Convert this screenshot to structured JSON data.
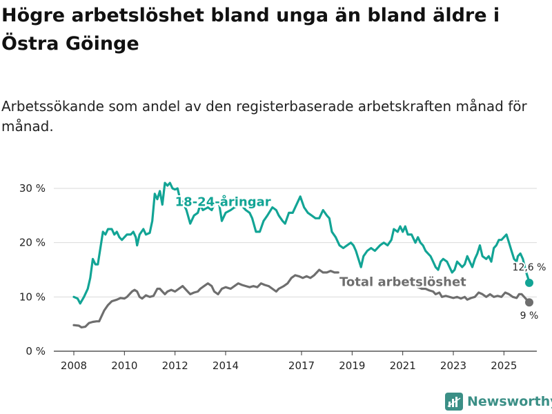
{
  "title": "Högre arbetslöshet bland unga än bland äldre i Östra Göinge",
  "subtitle": "Arbetssökande som andel av den registerbaserade arbetskraften månad för månad.",
  "brand": {
    "name": "Newsworthy",
    "icon": "newsworthy-logo-icon",
    "color": "#3b8f86"
  },
  "chart_data": {
    "type": "line",
    "xlim": [
      2008,
      2026.3
    ],
    "ylim": [
      0,
      30
    ],
    "yticks": [
      {
        "value": 0,
        "label": "0 %"
      },
      {
        "value": 10,
        "label": "10 %"
      },
      {
        "value": 20,
        "label": "20 %"
      },
      {
        "value": 30,
        "label": "30 %"
      }
    ],
    "xticks": [
      {
        "value": 2008,
        "label": "2008"
      },
      {
        "value": 2010,
        "label": "2010"
      },
      {
        "value": 2012,
        "label": "2012"
      },
      {
        "value": 2014,
        "label": "2014"
      },
      {
        "value": 2017,
        "label": "2017"
      },
      {
        "value": 2019,
        "label": "2019"
      },
      {
        "value": 2021,
        "label": "2021"
      },
      {
        "value": 2023,
        "label": "2023"
      },
      {
        "value": 2025,
        "label": "2025"
      }
    ],
    "grid": true,
    "series": [
      {
        "name": "18-24-åringar",
        "color": "#12a495",
        "label_anchor": {
          "x": 2012.0,
          "y": 27.5
        },
        "end_label": "12,6 %",
        "end_point": {
          "x": 2026.0,
          "y": 12.6
        },
        "points": [
          [
            2008.0,
            10.0
          ],
          [
            2008.15,
            9.7
          ],
          [
            2008.25,
            8.8
          ],
          [
            2008.4,
            10.0
          ],
          [
            2008.55,
            11.5
          ],
          [
            2008.65,
            13.5
          ],
          [
            2008.75,
            17.0
          ],
          [
            2008.85,
            16.0
          ],
          [
            2008.95,
            16.0
          ],
          [
            2009.05,
            19.0
          ],
          [
            2009.15,
            22.0
          ],
          [
            2009.25,
            21.5
          ],
          [
            2009.35,
            22.5
          ],
          [
            2009.5,
            22.5
          ],
          [
            2009.6,
            21.5
          ],
          [
            2009.7,
            22.0
          ],
          [
            2009.8,
            21.0
          ],
          [
            2009.9,
            20.5
          ],
          [
            2010.0,
            21.0
          ],
          [
            2010.1,
            21.5
          ],
          [
            2010.25,
            21.5
          ],
          [
            2010.35,
            22.0
          ],
          [
            2010.45,
            21.0
          ],
          [
            2010.5,
            19.5
          ],
          [
            2010.6,
            21.5
          ],
          [
            2010.75,
            22.5
          ],
          [
            2010.85,
            21.5
          ],
          [
            2011.0,
            21.8
          ],
          [
            2011.1,
            24.0
          ],
          [
            2011.2,
            29.0
          ],
          [
            2011.3,
            28.0
          ],
          [
            2011.4,
            29.5
          ],
          [
            2011.5,
            27.0
          ],
          [
            2011.6,
            31.0
          ],
          [
            2011.7,
            30.5
          ],
          [
            2011.8,
            31.0
          ],
          [
            2011.9,
            30.0
          ],
          [
            2012.0,
            29.8
          ],
          [
            2012.1,
            30.0
          ],
          [
            2012.2,
            28.0
          ],
          [
            2012.3,
            27.5
          ],
          [
            2012.35,
            27.0
          ],
          [
            2012.45,
            26.0
          ],
          [
            2012.6,
            23.5
          ],
          [
            2012.75,
            25.0
          ],
          [
            2012.9,
            25.5
          ],
          [
            2013.0,
            27.0
          ],
          [
            2013.1,
            26.0
          ],
          [
            2013.3,
            26.5
          ],
          [
            2013.45,
            26.0
          ],
          [
            2013.6,
            27.5
          ],
          [
            2013.75,
            27.0
          ],
          [
            2013.85,
            24.0
          ],
          [
            2014.0,
            25.5
          ],
          [
            2014.2,
            26.0
          ],
          [
            2014.35,
            26.5
          ],
          [
            2014.6,
            27.0
          ],
          [
            2014.8,
            26.0
          ],
          [
            2014.95,
            25.5
          ],
          [
            2015.05,
            24.5
          ],
          [
            2015.2,
            22.0
          ],
          [
            2015.35,
            22.0
          ],
          [
            2015.5,
            24.0
          ],
          [
            2015.65,
            25.0
          ],
          [
            2015.85,
            26.5
          ],
          [
            2016.0,
            26.0
          ],
          [
            2016.1,
            25.0
          ],
          [
            2016.25,
            24.0
          ],
          [
            2016.35,
            23.5
          ],
          [
            2016.5,
            25.5
          ],
          [
            2016.65,
            25.5
          ],
          [
            2016.8,
            27.0
          ],
          [
            2016.95,
            28.5
          ],
          [
            2017.1,
            26.5
          ],
          [
            2017.25,
            25.5
          ],
          [
            2017.4,
            25.0
          ],
          [
            2017.55,
            24.5
          ],
          [
            2017.7,
            24.5
          ],
          [
            2017.85,
            26.0
          ],
          [
            2018.0,
            25.0
          ],
          [
            2018.1,
            24.5
          ],
          [
            2018.2,
            22.0
          ],
          [
            2018.35,
            21.0
          ],
          [
            2018.5,
            19.5
          ],
          [
            2018.65,
            19.0
          ],
          [
            2018.8,
            19.5
          ],
          [
            2018.95,
            20.0
          ],
          [
            2019.05,
            19.5
          ],
          [
            2019.15,
            18.5
          ],
          [
            2019.25,
            17.0
          ],
          [
            2019.35,
            15.5
          ],
          [
            2019.45,
            17.5
          ],
          [
            2019.6,
            18.5
          ],
          [
            2019.75,
            19.0
          ],
          [
            2019.9,
            18.5
          ],
          [
            2020.1,
            19.5
          ],
          [
            2020.25,
            20.0
          ],
          [
            2020.4,
            19.5
          ],
          [
            2020.55,
            20.5
          ],
          [
            2020.65,
            22.5
          ],
          [
            2020.8,
            22.0
          ],
          [
            2020.9,
            23.0
          ],
          [
            2021.0,
            22.0
          ],
          [
            2021.1,
            23.0
          ],
          [
            2021.2,
            21.5
          ],
          [
            2021.35,
            21.5
          ],
          [
            2021.5,
            20.0
          ],
          [
            2021.6,
            21.0
          ],
          [
            2021.7,
            20.0
          ],
          [
            2021.8,
            19.5
          ],
          [
            2021.9,
            18.5
          ],
          [
            2022.0,
            18.0
          ],
          [
            2022.1,
            17.5
          ],
          [
            2022.2,
            16.5
          ],
          [
            2022.3,
            15.5
          ],
          [
            2022.4,
            15.0
          ],
          [
            2022.5,
            16.5
          ],
          [
            2022.6,
            17.0
          ],
          [
            2022.75,
            16.5
          ],
          [
            2022.85,
            15.5
          ],
          [
            2022.95,
            14.5
          ],
          [
            2023.05,
            15.0
          ],
          [
            2023.15,
            16.5
          ],
          [
            2023.25,
            16.0
          ],
          [
            2023.35,
            15.5
          ],
          [
            2023.45,
            16.0
          ],
          [
            2023.55,
            17.5
          ],
          [
            2023.65,
            16.5
          ],
          [
            2023.75,
            15.5
          ],
          [
            2023.85,
            17.0
          ],
          [
            2023.95,
            18.0
          ],
          [
            2024.05,
            19.5
          ],
          [
            2024.15,
            17.5
          ],
          [
            2024.3,
            17.0
          ],
          [
            2024.4,
            17.5
          ],
          [
            2024.5,
            16.5
          ],
          [
            2024.6,
            19.0
          ],
          [
            2024.7,
            19.5
          ],
          [
            2024.8,
            20.5
          ],
          [
            2024.9,
            20.5
          ],
          [
            2025.0,
            21.0
          ],
          [
            2025.1,
            21.5
          ],
          [
            2025.2,
            20.0
          ],
          [
            2025.3,
            18.5
          ],
          [
            2025.4,
            17.0
          ],
          [
            2025.5,
            16.5
          ],
          [
            2025.55,
            17.5
          ],
          [
            2025.65,
            18.0
          ],
          [
            2025.75,
            17.0
          ],
          [
            2025.85,
            15.0
          ],
          [
            2025.95,
            13.5
          ],
          [
            2026.0,
            12.6
          ]
        ]
      },
      {
        "name": "Total arbetslöshet",
        "color": "#6e6e6e",
        "label_anchor": {
          "x": 2018.5,
          "y": 12.8
        },
        "end_label": "9 %",
        "end_point": {
          "x": 2026.0,
          "y": 9.0
        },
        "points": [
          [
            2008.0,
            4.8
          ],
          [
            2008.2,
            4.7
          ],
          [
            2008.3,
            4.4
          ],
          [
            2008.45,
            4.5
          ],
          [
            2008.6,
            5.2
          ],
          [
            2008.75,
            5.4
          ],
          [
            2008.9,
            5.5
          ],
          [
            2009.0,
            5.5
          ],
          [
            2009.1,
            6.5
          ],
          [
            2009.2,
            7.5
          ],
          [
            2009.35,
            8.5
          ],
          [
            2009.5,
            9.2
          ],
          [
            2009.7,
            9.5
          ],
          [
            2009.85,
            9.8
          ],
          [
            2010.0,
            9.7
          ],
          [
            2010.1,
            10.0
          ],
          [
            2010.2,
            10.5
          ],
          [
            2010.3,
            11.0
          ],
          [
            2010.4,
            11.3
          ],
          [
            2010.5,
            11.0
          ],
          [
            2010.6,
            10.0
          ],
          [
            2010.7,
            9.7
          ],
          [
            2010.85,
            10.3
          ],
          [
            2011.0,
            10.0
          ],
          [
            2011.15,
            10.2
          ],
          [
            2011.3,
            11.5
          ],
          [
            2011.4,
            11.5
          ],
          [
            2011.5,
            11.0
          ],
          [
            2011.6,
            10.5
          ],
          [
            2011.7,
            11.0
          ],
          [
            2011.85,
            11.3
          ],
          [
            2012.0,
            11.0
          ],
          [
            2012.15,
            11.5
          ],
          [
            2012.3,
            12.0
          ],
          [
            2012.4,
            11.5
          ],
          [
            2012.5,
            11.0
          ],
          [
            2012.6,
            10.5
          ],
          [
            2012.75,
            10.8
          ],
          [
            2012.9,
            11.0
          ],
          [
            2013.0,
            11.5
          ],
          [
            2013.15,
            12.0
          ],
          [
            2013.3,
            12.5
          ],
          [
            2013.45,
            12.0
          ],
          [
            2013.55,
            11.0
          ],
          [
            2013.7,
            10.5
          ],
          [
            2013.85,
            11.5
          ],
          [
            2014.0,
            11.8
          ],
          [
            2014.2,
            11.5
          ],
          [
            2014.35,
            12.0
          ],
          [
            2014.5,
            12.5
          ],
          [
            2014.65,
            12.2
          ],
          [
            2014.8,
            12.0
          ],
          [
            2014.95,
            11.8
          ],
          [
            2015.1,
            12.0
          ],
          [
            2015.25,
            11.8
          ],
          [
            2015.4,
            12.5
          ],
          [
            2015.55,
            12.2
          ],
          [
            2015.7,
            12.0
          ],
          [
            2015.85,
            11.5
          ],
          [
            2016.0,
            11.0
          ],
          [
            2016.1,
            11.5
          ],
          [
            2016.3,
            12.0
          ],
          [
            2016.45,
            12.5
          ],
          [
            2016.6,
            13.5
          ],
          [
            2016.75,
            14.0
          ],
          [
            2016.9,
            13.8
          ],
          [
            2017.05,
            13.5
          ],
          [
            2017.2,
            13.8
          ],
          [
            2017.35,
            13.5
          ],
          [
            2017.5,
            14.0
          ],
          [
            2017.7,
            15.0
          ],
          [
            2017.85,
            14.5
          ],
          [
            2018.0,
            14.5
          ],
          [
            2018.15,
            14.8
          ],
          [
            2018.3,
            14.5
          ],
          [
            2018.45,
            14.5
          ],
          [
            2021.6,
            11.8
          ],
          [
            2021.75,
            11.5
          ],
          [
            2021.9,
            11.5
          ],
          [
            2022.05,
            11.2
          ],
          [
            2022.2,
            11.0
          ],
          [
            2022.3,
            10.5
          ],
          [
            2022.45,
            10.8
          ],
          [
            2022.55,
            10.0
          ],
          [
            2022.7,
            10.2
          ],
          [
            2022.85,
            10.0
          ],
          [
            2023.0,
            9.8
          ],
          [
            2023.15,
            10.0
          ],
          [
            2023.3,
            9.7
          ],
          [
            2023.45,
            10.0
          ],
          [
            2023.55,
            9.5
          ],
          [
            2023.7,
            9.8
          ],
          [
            2023.85,
            10.0
          ],
          [
            2024.0,
            10.8
          ],
          [
            2024.15,
            10.5
          ],
          [
            2024.3,
            10.0
          ],
          [
            2024.45,
            10.5
          ],
          [
            2024.6,
            10.0
          ],
          [
            2024.75,
            10.2
          ],
          [
            2024.9,
            10.0
          ],
          [
            2025.05,
            10.8
          ],
          [
            2025.2,
            10.5
          ],
          [
            2025.35,
            10.0
          ],
          [
            2025.5,
            9.8
          ],
          [
            2025.6,
            10.5
          ],
          [
            2025.7,
            10.5
          ],
          [
            2025.8,
            10.0
          ],
          [
            2025.9,
            9.5
          ],
          [
            2026.0,
            9.0
          ]
        ]
      }
    ]
  }
}
